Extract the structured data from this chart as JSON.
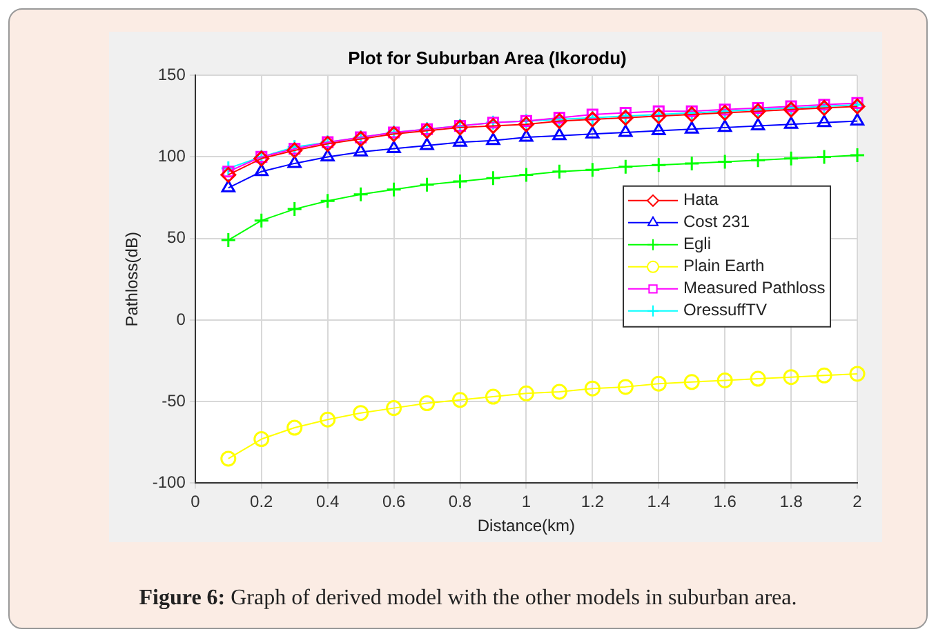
{
  "chart_data": {
    "type": "line",
    "title": "Plot for Suburban Area (Ikorodu)",
    "xlabel": "Distance(km)",
    "ylabel": "Pathloss(dB)",
    "x": [
      0.1,
      0.2,
      0.3,
      0.4,
      0.5,
      0.6,
      0.7,
      0.8,
      0.9,
      1.0,
      1.1,
      1.2,
      1.3,
      1.4,
      1.5,
      1.6,
      1.7,
      1.8,
      1.9,
      2.0
    ],
    "series": [
      {
        "name": "Hata",
        "color": "#ff0000",
        "marker": "diamond",
        "values": [
          89,
          99,
          104,
          108,
          111,
          114,
          116,
          118,
          119,
          120,
          122,
          123,
          124,
          125,
          126,
          127,
          128,
          129,
          130,
          131
        ]
      },
      {
        "name": "Cost 231",
        "color": "#0000ff",
        "marker": "triangle",
        "values": [
          81,
          91,
          96,
          100,
          103,
          105,
          107,
          109,
          110,
          112,
          113,
          114,
          115,
          116,
          117,
          118,
          119,
          120,
          121,
          122
        ]
      },
      {
        "name": "Egli",
        "color": "#00ff00",
        "marker": "cross",
        "values": [
          49,
          61,
          68,
          73,
          77,
          80,
          83,
          85,
          87,
          89,
          91,
          92,
          94,
          95,
          96,
          97,
          98,
          99,
          100,
          101
        ]
      },
      {
        "name": "Plain Earth",
        "color": "#ffff00",
        "marker": "circle",
        "values": [
          -85,
          -73,
          -66,
          -61,
          -57,
          -54,
          -51,
          -49,
          -47,
          -45,
          -44,
          -42,
          -41,
          -39,
          -38,
          -37,
          -36,
          -35,
          -34,
          -33
        ]
      },
      {
        "name": "Measured Pathloss",
        "color": "#ff00ff",
        "marker": "square",
        "values": [
          91,
          100,
          105,
          109,
          112,
          115,
          117,
          119,
          121,
          122,
          124,
          126,
          127,
          128,
          128,
          129,
          130,
          131,
          132,
          133
        ]
      },
      {
        "name": "OressuffTV",
        "color": "#00ffff",
        "marker": "cross",
        "values": [
          93,
          100,
          106,
          109,
          112,
          115,
          117,
          119,
          121,
          122,
          123,
          124,
          125,
          126,
          127,
          128,
          129,
          130,
          131,
          132
        ]
      }
    ],
    "xlim": [
      0,
      2
    ],
    "xticks": [
      0,
      0.2,
      0.4,
      0.6,
      0.8,
      1,
      1.2,
      1.4,
      1.6,
      1.8,
      2
    ],
    "ylim": [
      -100,
      150
    ],
    "yticks": [
      -100,
      -50,
      0,
      50,
      100,
      150
    ],
    "grid": true,
    "legend": "right",
    "line_style": "solid",
    "annotations": [
      "Figure 6: Graph of derived model with the other models in suburban area."
    ]
  }
}
